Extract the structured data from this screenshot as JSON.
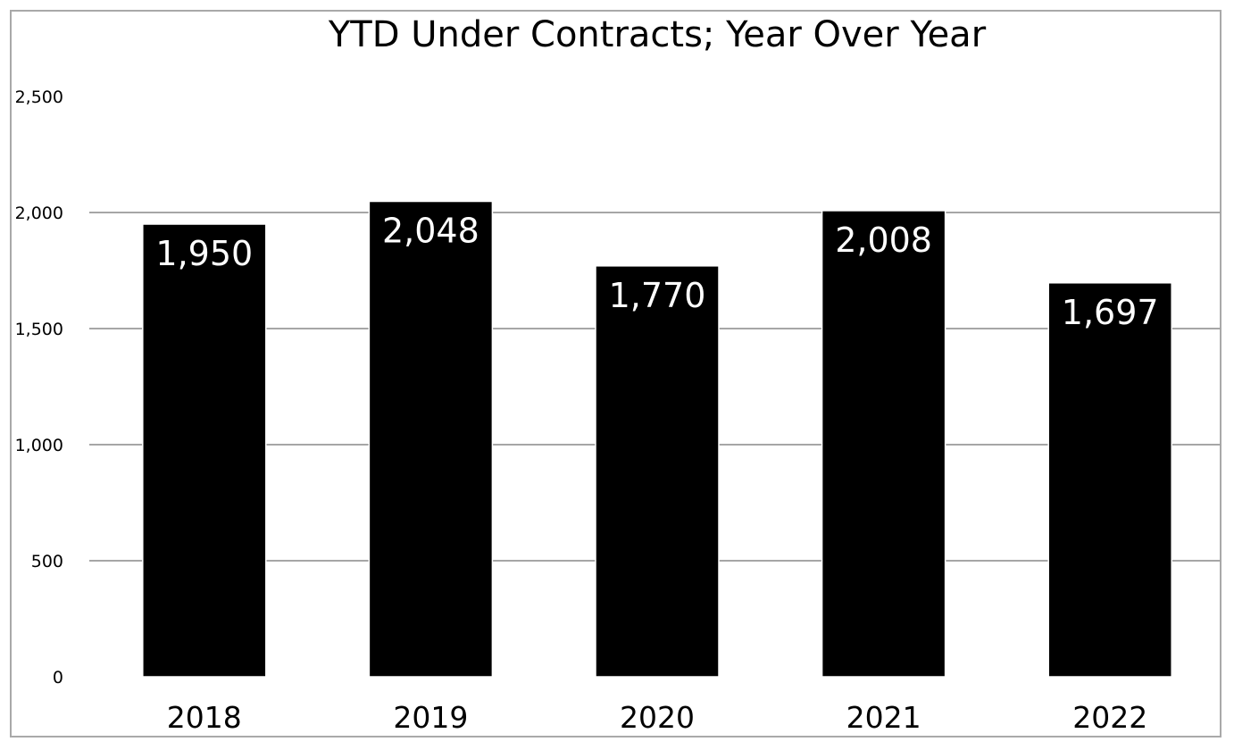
{
  "chart_data": {
    "type": "bar",
    "title": "YTD Under Contracts; Year Over Year",
    "xlabel": "",
    "ylabel": "",
    "categories": [
      "2018",
      "2019",
      "2020",
      "2021",
      "2022"
    ],
    "values": [
      1950,
      2048,
      1770,
      2008,
      1697
    ],
    "value_labels": [
      "1,950",
      "2,048",
      "1,770",
      "2,008",
      "1,697"
    ],
    "ylim": [
      0,
      2500
    ],
    "yticks": [
      0,
      500,
      1000,
      1500,
      2000,
      2500
    ],
    "ytick_labels": [
      "0",
      "500",
      "1,000",
      "1,500",
      "2,000",
      "2,500"
    ],
    "grid": true,
    "legend": "none",
    "colors": {
      "bar": "#000000",
      "bar_label": "#ffffff",
      "grid": "#a6a6a6",
      "frame": "#a9a9a9"
    }
  }
}
